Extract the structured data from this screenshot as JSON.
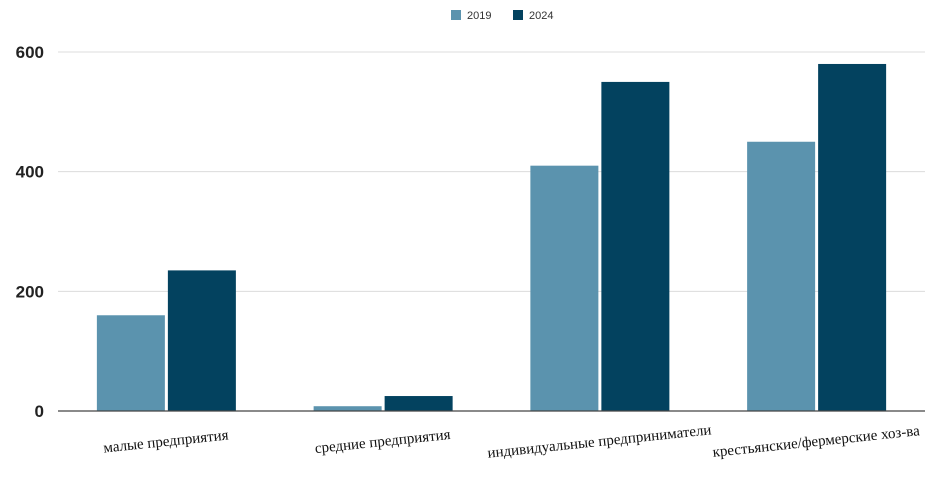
{
  "chart_data": {
    "type": "bar",
    "title": "",
    "xlabel": "",
    "ylabel": "",
    "ylim": [
      0,
      600
    ],
    "yticks": [
      0,
      200,
      400,
      600
    ],
    "grid": true,
    "legend_position": "top-center",
    "categories": [
      "малые предприятия",
      "средние предприятия",
      "индивидуальные предприниматели",
      "крестьянские/фермерские хоз-ва"
    ],
    "series": [
      {
        "name": "2019",
        "color": "#5b93ae",
        "values": [
          160,
          8,
          410,
          450
        ]
      },
      {
        "name": "2024",
        "color": "#03425f",
        "values": [
          235,
          25,
          550,
          580
        ]
      }
    ]
  }
}
